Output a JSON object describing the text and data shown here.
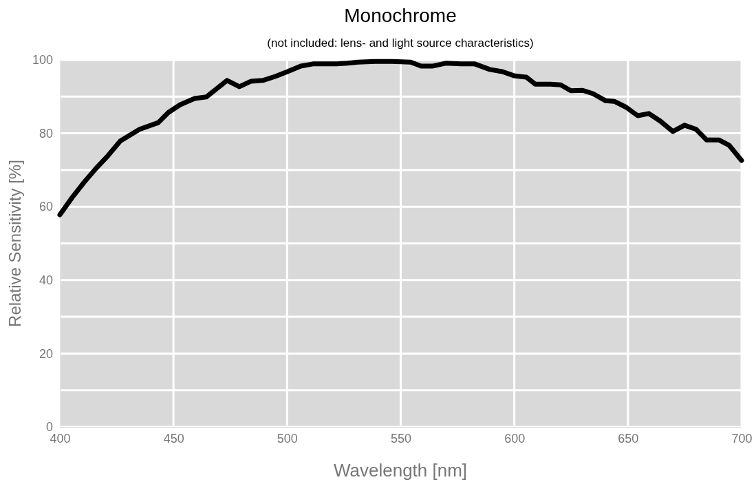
{
  "chart_data": {
    "type": "line",
    "title": "Monochrome",
    "subtitle": "(not included: lens- and light source characteristics)",
    "xlabel": "Wavelength [nm]",
    "ylabel": "Relative Sensitivity [%]",
    "xlim": [
      400,
      700
    ],
    "xticks": [
      400,
      450,
      500,
      550,
      600,
      650,
      700
    ],
    "ylim": [
      0,
      100
    ],
    "yticks": [
      0,
      {
        "value": 10,
        "label": null
      },
      20,
      {
        "value": 30,
        "label": null
      },
      40,
      {
        "value": 50,
        "label": null
      },
      60,
      {
        "value": 70,
        "label": null
      },
      80,
      {
        "value": 90,
        "label": null
      },
      100
    ],
    "grid": true,
    "marker": "none",
    "line_style": "solid",
    "series": [
      {
        "color": "#000000",
        "x": [
          400,
          405.4,
          410.6,
          416,
          421.2,
          426.6,
          435.1,
          443.3,
          447.8,
          453,
          459.3,
          464.5,
          473.6,
          479,
          484.2,
          489.3,
          494.8,
          500.2,
          506,
          511.4,
          517.5,
          521.9,
          526.5,
          531.1,
          538.7,
          546.2,
          554.4,
          559,
          563.8,
          569.8,
          576.5,
          582.6,
          589.2,
          594.7,
          599.8,
          605.3,
          609.2,
          615.9,
          620.4,
          624.9,
          630.1,
          634.6,
          640.1,
          644,
          649.2,
          654.3,
          659.2,
          664.3,
          669.8,
          674.9,
          680,
          684.6,
          690,
          694.6,
          700
        ],
        "values": [
          57.8,
          62.5,
          66.6,
          70.5,
          73.9,
          77.9,
          81.1,
          82.9,
          85.7,
          87.8,
          89.5,
          89.9,
          94.4,
          92.7,
          94.2,
          94.4,
          95.5,
          96.8,
          98.3,
          98.9,
          98.9,
          98.9,
          99.1,
          99.4,
          99.6,
          99.6,
          99.4,
          98.3,
          98.3,
          99.1,
          98.9,
          98.9,
          97.4,
          96.8,
          95.7,
          95.3,
          93.4,
          93.4,
          93.2,
          91.6,
          91.7,
          90.8,
          88.9,
          88.7,
          87.1,
          84.8,
          85.4,
          83.3,
          80.5,
          82.2,
          81.1,
          78.2,
          78.2,
          76.7,
          72.6
        ]
      }
    ]
  }
}
